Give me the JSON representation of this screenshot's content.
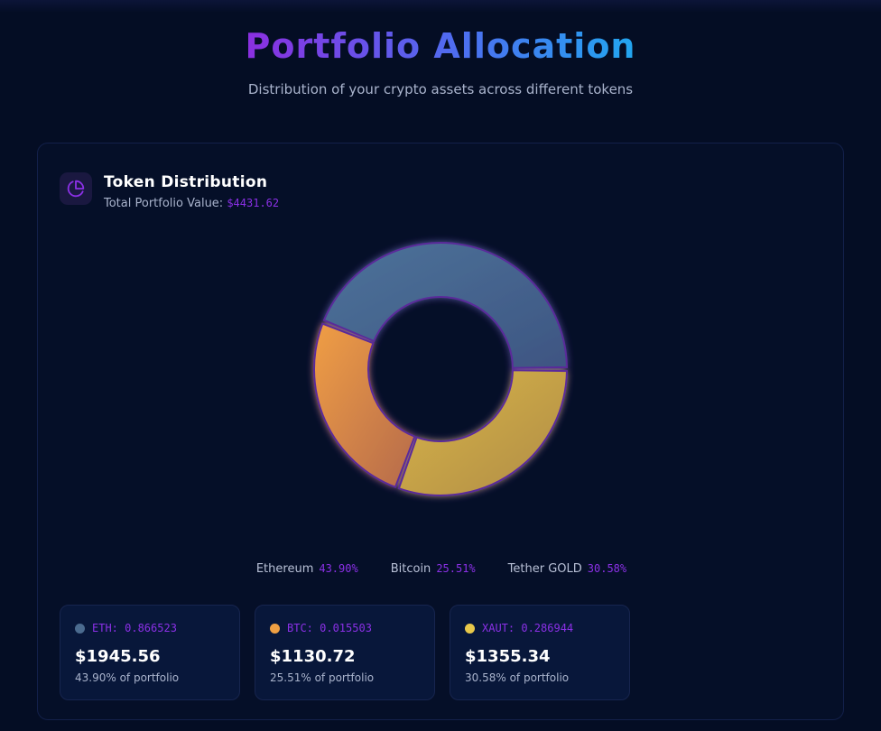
{
  "header": {
    "title": "Portfolio Allocation",
    "subtitle": "Distribution of your crypto assets across different tokens"
  },
  "card": {
    "title": "Token Distribution",
    "total_label": "Total Portfolio Value:",
    "total_value": "$4431.62",
    "icon": "pie-chart-icon"
  },
  "chart_data": {
    "type": "pie",
    "title": "",
    "categories": [
      "Ethereum",
      "Bitcoin",
      "Tether GOLD"
    ],
    "values": [
      43.9,
      25.51,
      30.58
    ],
    "labels": [
      "43.90%",
      "25.51%",
      "30.58%"
    ],
    "colors": [
      "#4b6b8f",
      "#e79a48",
      "#d2ad45"
    ],
    "legend_position": "bottom"
  },
  "tokens": [
    {
      "symbol": "ETH: 0.866523",
      "value": "$1945.56",
      "pct": "43.90% of portfolio",
      "color": "#4b6b8f"
    },
    {
      "symbol": "BTC: 0.015503",
      "value": "$1130.72",
      "pct": "25.51% of portfolio",
      "color": "#f0a043"
    },
    {
      "symbol": "XAUT: 0.286944",
      "value": "$1355.34",
      "pct": "30.58% of portfolio",
      "color": "#e8c84a"
    }
  ]
}
